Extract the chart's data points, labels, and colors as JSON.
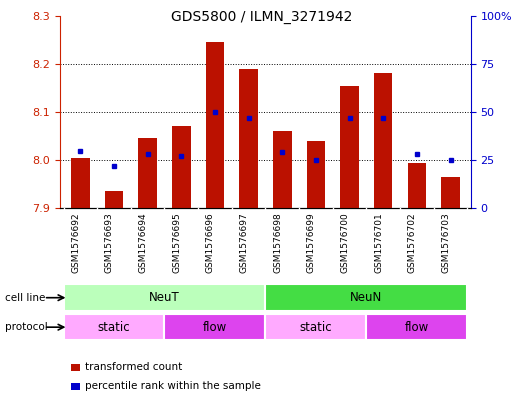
{
  "title": "GDS5800 / ILMN_3271942",
  "samples": [
    "GSM1576692",
    "GSM1576693",
    "GSM1576694",
    "GSM1576695",
    "GSM1576696",
    "GSM1576697",
    "GSM1576698",
    "GSM1576699",
    "GSM1576700",
    "GSM1576701",
    "GSM1576702",
    "GSM1576703"
  ],
  "transformed_counts": [
    8.005,
    7.935,
    8.045,
    8.07,
    8.245,
    8.19,
    8.06,
    8.04,
    8.155,
    8.18,
    7.995,
    7.965
  ],
  "percentile_ranks": [
    30,
    22,
    28,
    27,
    50,
    47,
    29,
    25,
    47,
    47,
    28,
    25
  ],
  "ylim_left": [
    7.9,
    8.3
  ],
  "ylim_right": [
    0,
    100
  ],
  "yticks_left": [
    7.9,
    8.0,
    8.1,
    8.2,
    8.3
  ],
  "yticks_right": [
    0,
    25,
    50,
    75,
    100
  ],
  "yticklabels_right": [
    "0",
    "25",
    "50",
    "75",
    "100%"
  ],
  "grid_yticks": [
    8.0,
    8.1,
    8.2
  ],
  "bar_color": "#bb1100",
  "dot_color": "#0000cc",
  "grid_color": "#000000",
  "tick_bg_color": "#bbbbbb",
  "cell_lines": [
    {
      "label": "NeuT",
      "start": 0,
      "end": 6,
      "color": "#bbffbb"
    },
    {
      "label": "NeuN",
      "start": 6,
      "end": 12,
      "color": "#44dd44"
    }
  ],
  "protocols": [
    {
      "label": "static",
      "start": 0,
      "end": 3,
      "color": "#ffaaff"
    },
    {
      "label": "flow",
      "start": 3,
      "end": 6,
      "color": "#dd44ee"
    },
    {
      "label": "static",
      "start": 6,
      "end": 9,
      "color": "#ffaaff"
    },
    {
      "label": "flow",
      "start": 9,
      "end": 12,
      "color": "#dd44ee"
    }
  ],
  "legend_items": [
    {
      "label": "transformed count",
      "color": "#bb1100"
    },
    {
      "label": "percentile rank within the sample",
      "color": "#0000cc"
    }
  ],
  "left_axis_color": "#cc2200",
  "right_axis_color": "#0000cc",
  "figsize": [
    5.23,
    3.93
  ],
  "dpi": 100
}
